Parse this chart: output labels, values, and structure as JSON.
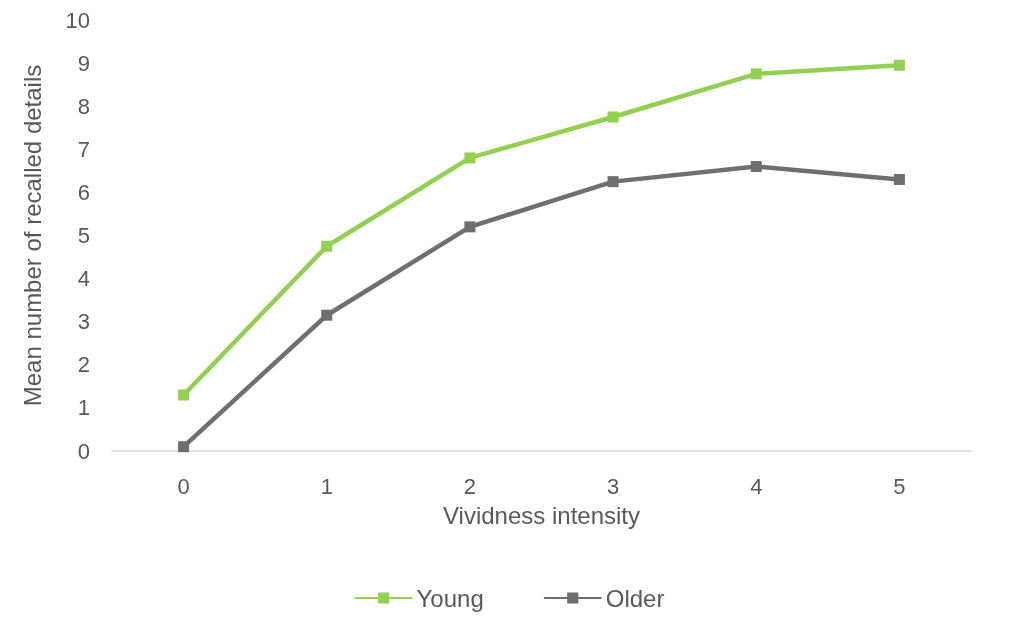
{
  "chart_data": {
    "type": "line",
    "xlabel": "Vividness intensity",
    "ylabel": "Mean number of recalled details",
    "categories": [
      "0",
      "1",
      "2",
      "3",
      "4",
      "5"
    ],
    "series": [
      {
        "name": "Young",
        "color": "#92d050",
        "values": [
          1.3,
          4.75,
          6.8,
          7.75,
          8.75,
          8.95
        ]
      },
      {
        "name": "Older",
        "color": "#6f6f6f",
        "values": [
          0.1,
          3.15,
          5.2,
          6.25,
          6.6,
          6.3
        ]
      }
    ],
    "ylim": [
      0,
      10
    ],
    "yticks": [
      0,
      1,
      2,
      3,
      4,
      5,
      6,
      7,
      8,
      9,
      10
    ],
    "grid": false,
    "legend": "bottom",
    "marker": "square",
    "line_style": "solid"
  }
}
